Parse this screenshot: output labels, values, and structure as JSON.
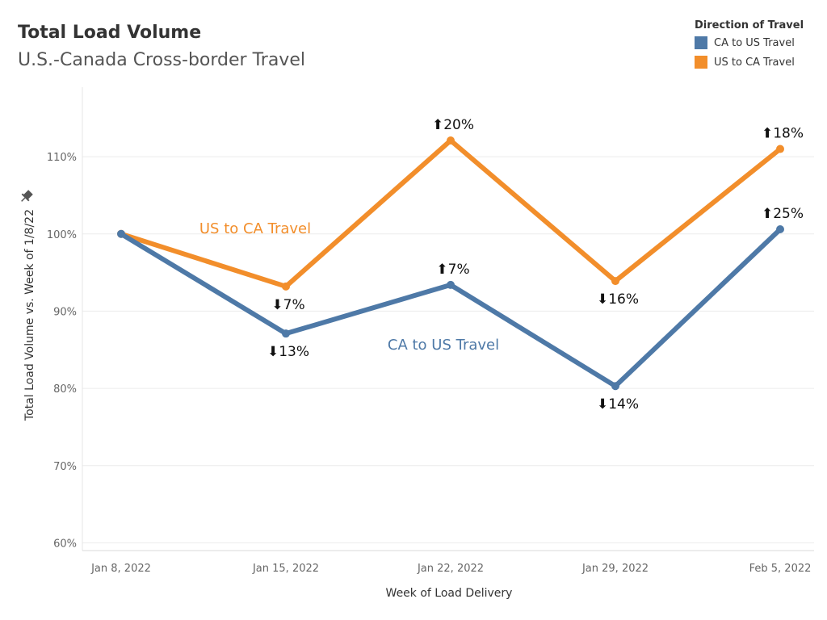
{
  "header": {
    "title": "Total Load Volume",
    "subtitle": "U.S.-Canada Cross-border Travel"
  },
  "legend": {
    "title": "Direction of Travel",
    "items": [
      {
        "label": "CA to US Travel",
        "color": "#4e79a7"
      },
      {
        "label": "US to CA Travel",
        "color": "#f28e2b"
      }
    ]
  },
  "chart_data": {
    "type": "line",
    "title": "Total Load Volume",
    "subtitle": "U.S.-Canada Cross-border Travel",
    "xlabel": "Week of Load Delivery",
    "ylabel": "Total Load Volume vs. Week of 1/8/22",
    "categories": [
      "Jan 8, 2022",
      "Jan 15, 2022",
      "Jan 22, 2022",
      "Jan 29, 2022",
      "Feb 5, 2022"
    ],
    "yticks": [
      "60%",
      "70%",
      "80%",
      "90%",
      "100%",
      "110%"
    ],
    "ylim": [
      59,
      119
    ],
    "grid": true,
    "legend_position": "top-right",
    "series": [
      {
        "name": "US to CA Travel",
        "color": "#f28e2b",
        "values": [
          100,
          93.2,
          112.1,
          93.9,
          111.0
        ],
        "labels": [
          "",
          "⬇7%",
          "⬆20%",
          "⬇16%",
          "⬆18%"
        ],
        "label_pos": [
          "",
          "below",
          "above",
          "below",
          "above"
        ],
        "inline_label": "US to CA Travel"
      },
      {
        "name": "CA to US Travel",
        "color": "#4e79a7",
        "values": [
          100,
          87.1,
          93.4,
          80.3,
          100.6
        ],
        "labels": [
          "",
          "⬇13%",
          "⬆7%",
          "⬇14%",
          "⬆25%"
        ],
        "label_pos": [
          "",
          "below",
          "above",
          "below",
          "above"
        ],
        "inline_label": "CA to US Travel"
      }
    ]
  }
}
